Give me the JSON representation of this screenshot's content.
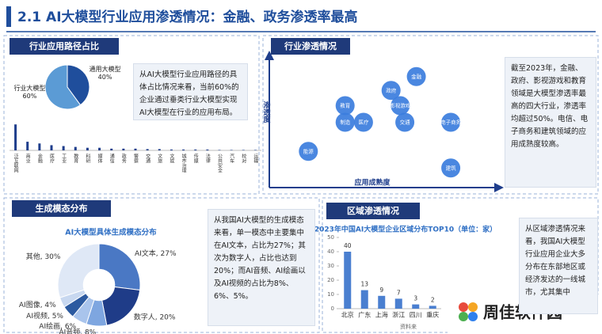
{
  "title": "2.1 AI大模型行业应用渗透情况：金融、政务渗透率最高",
  "sections": [
    {
      "header": "行业应用路径占比",
      "text": "从AI大模型行业应用路径的具体占比情况来看，当前60%的企业通过垂类行业大模型实现AI大模型在行业的应用布局。"
    },
    {
      "header": "行业渗透情况",
      "text": "截至2023年，金融、政府、影视游戏和教育领域是大模型渗透率最高的四大行业，渗透率均超过50%。电信、电子商务和建筑领域的应用成熟度较高。"
    },
    {
      "header": "生成模态分布",
      "text": "从我国AI大模型的生成模态来看，单一模态中主要集中在AI文本，占比为27%；其次为数字人，占比也达到20%；而AI音频、AI绘画以及AI视频的占比为8%、6%、5%。"
    },
    {
      "header": "区域渗透情况",
      "text": "从区域渗透情况来看，我国AI大模型行业应用企业大多分布在东部地区或经济发达的一线城市，尤其集中"
    }
  ],
  "watermark": "周佳软件园",
  "chart_data": [
    {
      "type": "pie",
      "categories": [
        "通用大模型",
        "行业大模型"
      ],
      "values": [
        40,
        60
      ],
      "value_labels": [
        "40%",
        "60%"
      ],
      "colors": [
        "#1f4e9c",
        "#5b9bd5"
      ]
    },
    {
      "type": "bar",
      "categories": [
        "泛互联网",
        "商业",
        "金融",
        "医疗",
        "工业",
        "教育",
        "科研",
        "媒体",
        "通信",
        "政务",
        "警察",
        "交通",
        "文旅",
        "文娱",
        "城市治理",
        "传媒",
        "法律",
        "公共安全",
        "汽车",
        "校对",
        "运输"
      ],
      "values": [
        30,
        10,
        8,
        6,
        5,
        4,
        3,
        3,
        2,
        2,
        2,
        1.5,
        1.5,
        1,
        1,
        1,
        1,
        0.5,
        0.5,
        0.5,
        0.5
      ],
      "ylim": [
        0,
        32
      ],
      "color": "#1f3e8c"
    },
    {
      "type": "scatter",
      "x_label": "应用成熟度",
      "y_label": "渗透度",
      "labels": [
        "金融",
        "政府",
        "影视游戏",
        "教育",
        "制造",
        "医疗",
        "交通",
        "电子商务",
        "能源",
        "建筑"
      ],
      "x": [
        64,
        53,
        57,
        33,
        33,
        41,
        59,
        79,
        17,
        79
      ],
      "values": [
        79,
        69,
        58,
        58,
        46,
        46,
        46,
        46,
        25,
        13
      ],
      "xlim": [
        0,
        100
      ],
      "ylim": [
        0,
        100
      ],
      "color": "#3b7ddd"
    },
    {
      "type": "pie",
      "title": "AI大模型具体生成模态分布",
      "values": [
        27,
        20,
        8,
        6,
        5,
        4,
        30
      ],
      "value_labels": [
        "AI文本, 27%",
        "数字人, 20%",
        "AI音频, 8%",
        "AI绘画, 6%",
        "AI视频, 5%",
        "AI图像, 4%",
        "其他, 30%"
      ],
      "colors": [
        "#4a78c4",
        "#1f3c88",
        "#7ea6e0",
        "#a9c4ec",
        "#2c5aa0",
        "#c8d8f0",
        "#dfe8f6"
      ],
      "donut": true
    },
    {
      "type": "bar",
      "title": "2023年中国AI大模型企业区域分布TOP10（单位：家）",
      "categories": [
        "北京",
        "广东",
        "上海",
        "浙江",
        "四川",
        "重庆"
      ],
      "values": [
        40,
        13,
        9,
        7,
        3,
        2
      ],
      "ylim": [
        0,
        50
      ],
      "yticks": [
        0,
        10,
        20,
        30,
        40,
        50
      ],
      "color": "#4a7fd0",
      "value_labels_shown": true,
      "source": "资料来"
    }
  ]
}
